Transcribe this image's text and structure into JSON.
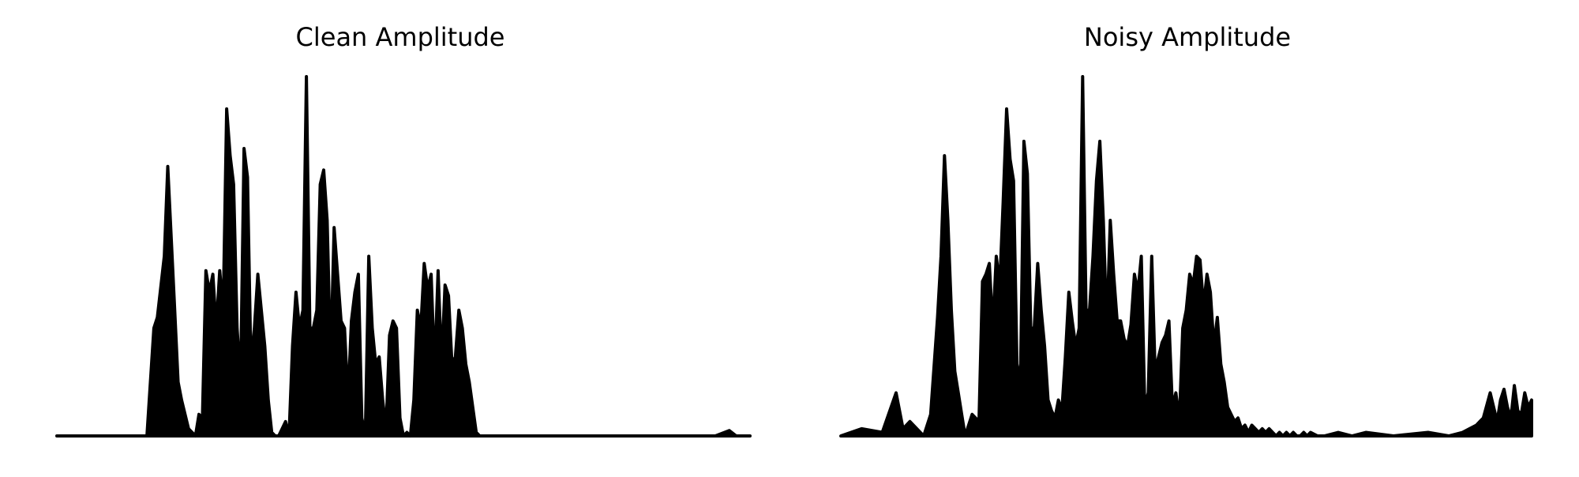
{
  "chart_data": [
    {
      "type": "area",
      "title": "Clean Amplitude",
      "xlabel": "",
      "ylabel": "",
      "axes_visible": false,
      "grid": false,
      "color": "#000000",
      "xlim": [
        0,
        1
      ],
      "ylim": [
        0,
        1
      ],
      "x": [
        0.0,
        0.13,
        0.14,
        0.145,
        0.155,
        0.16,
        0.165,
        0.17,
        0.175,
        0.18,
        0.19,
        0.2,
        0.205,
        0.21,
        0.215,
        0.22,
        0.225,
        0.23,
        0.235,
        0.24,
        0.245,
        0.25,
        0.255,
        0.26,
        0.265,
        0.27,
        0.275,
        0.28,
        0.285,
        0.29,
        0.295,
        0.3,
        0.305,
        0.31,
        0.315,
        0.32,
        0.325,
        0.33,
        0.335,
        0.34,
        0.345,
        0.35,
        0.355,
        0.36,
        0.365,
        0.37,
        0.375,
        0.38,
        0.385,
        0.39,
        0.395,
        0.4,
        0.405,
        0.41,
        0.415,
        0.42,
        0.425,
        0.43,
        0.435,
        0.44,
        0.445,
        0.45,
        0.455,
        0.46,
        0.465,
        0.47,
        0.475,
        0.48,
        0.485,
        0.49,
        0.495,
        0.5,
        0.505,
        0.51,
        0.515,
        0.52,
        0.525,
        0.53,
        0.535,
        0.54,
        0.545,
        0.55,
        0.555,
        0.56,
        0.565,
        0.57,
        0.575,
        0.58,
        0.585,
        0.59,
        0.595,
        0.6,
        0.605,
        0.61,
        0.615,
        0.62,
        0.625,
        0.63,
        0.635,
        0.64,
        0.645,
        0.65,
        0.655,
        0.66,
        0.665,
        0.67,
        0.7,
        0.8,
        0.95,
        0.97,
        0.98,
        1.0
      ],
      "y": [
        0.0,
        0.0,
        0.3,
        0.33,
        0.5,
        0.75,
        0.55,
        0.35,
        0.15,
        0.1,
        0.02,
        0.0,
        0.06,
        0.05,
        0.46,
        0.4,
        0.45,
        0.3,
        0.46,
        0.35,
        0.91,
        0.78,
        0.7,
        0.3,
        0.15,
        0.8,
        0.72,
        0.2,
        0.3,
        0.45,
        0.35,
        0.25,
        0.1,
        0.01,
        0.0,
        0.0,
        0.02,
        0.04,
        0.0,
        0.25,
        0.4,
        0.3,
        0.35,
        1.0,
        0.3,
        0.3,
        0.35,
        0.7,
        0.74,
        0.6,
        0.2,
        0.58,
        0.45,
        0.32,
        0.3,
        0.1,
        0.32,
        0.4,
        0.45,
        0.05,
        0.0,
        0.5,
        0.3,
        0.2,
        0.22,
        0.1,
        0.02,
        0.28,
        0.32,
        0.3,
        0.05,
        0.0,
        0.01,
        0.0,
        0.1,
        0.35,
        0.3,
        0.48,
        0.41,
        0.45,
        0.18,
        0.46,
        0.2,
        0.42,
        0.39,
        0.2,
        0.22,
        0.35,
        0.3,
        0.2,
        0.15,
        0.08,
        0.01,
        0.0,
        0.0,
        0.0,
        0.0,
        0.0,
        0.0,
        0.0,
        0.0,
        0.0,
        0.0,
        0.0,
        0.0,
        0.0,
        0.0,
        0.0,
        0.0,
        0.015,
        0.0,
        0.0
      ]
    },
    {
      "type": "area",
      "title": "Noisy Amplitude",
      "xlabel": "",
      "ylabel": "",
      "axes_visible": false,
      "grid": false,
      "color": "#000000",
      "xlim": [
        0,
        1
      ],
      "ylim": [
        0,
        1
      ],
      "x": [
        0.0,
        0.03,
        0.06,
        0.08,
        0.09,
        0.1,
        0.12,
        0.13,
        0.14,
        0.145,
        0.15,
        0.155,
        0.16,
        0.165,
        0.17,
        0.175,
        0.18,
        0.19,
        0.2,
        0.205,
        0.21,
        0.215,
        0.22,
        0.225,
        0.23,
        0.235,
        0.24,
        0.245,
        0.25,
        0.255,
        0.26,
        0.265,
        0.27,
        0.275,
        0.28,
        0.285,
        0.29,
        0.295,
        0.3,
        0.305,
        0.31,
        0.315,
        0.32,
        0.325,
        0.33,
        0.335,
        0.34,
        0.345,
        0.35,
        0.355,
        0.36,
        0.365,
        0.37,
        0.375,
        0.38,
        0.385,
        0.39,
        0.395,
        0.4,
        0.405,
        0.41,
        0.415,
        0.42,
        0.425,
        0.43,
        0.435,
        0.44,
        0.445,
        0.45,
        0.455,
        0.46,
        0.465,
        0.47,
        0.475,
        0.48,
        0.485,
        0.49,
        0.495,
        0.5,
        0.505,
        0.51,
        0.515,
        0.52,
        0.525,
        0.53,
        0.535,
        0.54,
        0.545,
        0.55,
        0.555,
        0.56,
        0.565,
        0.57,
        0.575,
        0.58,
        0.585,
        0.59,
        0.595,
        0.6,
        0.605,
        0.61,
        0.615,
        0.62,
        0.625,
        0.63,
        0.635,
        0.64,
        0.645,
        0.65,
        0.655,
        0.66,
        0.665,
        0.67,
        0.675,
        0.68,
        0.69,
        0.7,
        0.72,
        0.74,
        0.76,
        0.8,
        0.85,
        0.88,
        0.9,
        0.91,
        0.92,
        0.925,
        0.93,
        0.94,
        0.945,
        0.95,
        0.955,
        0.96,
        0.965,
        0.97,
        0.975,
        0.98,
        0.985,
        0.99,
        0.995,
        1.0
      ],
      "y": [
        0.0,
        0.02,
        0.01,
        0.12,
        0.02,
        0.04,
        0.0,
        0.06,
        0.33,
        0.5,
        0.78,
        0.6,
        0.35,
        0.18,
        0.12,
        0.06,
        0.0,
        0.06,
        0.04,
        0.43,
        0.45,
        0.48,
        0.3,
        0.5,
        0.42,
        0.65,
        0.91,
        0.77,
        0.71,
        0.2,
        0.15,
        0.82,
        0.73,
        0.3,
        0.3,
        0.48,
        0.35,
        0.25,
        0.1,
        0.07,
        0.05,
        0.1,
        0.07,
        0.22,
        0.4,
        0.32,
        0.25,
        0.3,
        1.0,
        0.35,
        0.35,
        0.5,
        0.71,
        0.82,
        0.6,
        0.3,
        0.6,
        0.45,
        0.32,
        0.32,
        0.27,
        0.25,
        0.31,
        0.45,
        0.4,
        0.5,
        0.08,
        0.12,
        0.5,
        0.18,
        0.22,
        0.26,
        0.28,
        0.32,
        0.08,
        0.12,
        0.04,
        0.3,
        0.35,
        0.45,
        0.42,
        0.5,
        0.49,
        0.36,
        0.45,
        0.4,
        0.25,
        0.33,
        0.2,
        0.15,
        0.08,
        0.06,
        0.04,
        0.05,
        0.02,
        0.03,
        0.01,
        0.03,
        0.02,
        0.01,
        0.02,
        0.01,
        0.02,
        0.01,
        0.0,
        0.01,
        0.0,
        0.01,
        0.0,
        0.01,
        0.0,
        0.0,
        0.01,
        0.0,
        0.01,
        0.0,
        0.0,
        0.01,
        0.0,
        0.01,
        0.0,
        0.01,
        0.0,
        0.01,
        0.02,
        0.03,
        0.04,
        0.05,
        0.12,
        0.08,
        0.04,
        0.1,
        0.13,
        0.08,
        0.05,
        0.14,
        0.07,
        0.06,
        0.12,
        0.08,
        0.1
      ]
    }
  ]
}
